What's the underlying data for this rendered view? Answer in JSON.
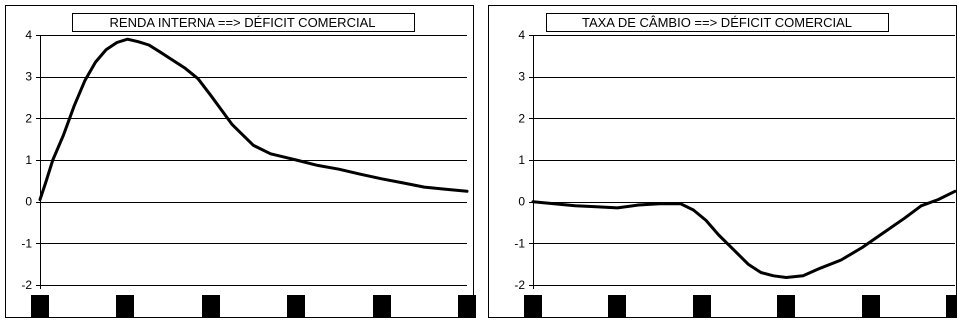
{
  "chart_data": [
    {
      "type": "line",
      "title": "RENDA INTERNA ==> DÉFICIT COMERCIAL",
      "xlabel": "",
      "ylabel": "",
      "ylim": [
        -2,
        4
      ],
      "yticks": [
        "4",
        "3",
        "2",
        "1",
        "0",
        "-1",
        "-2"
      ],
      "xlim": [
        0,
        10
      ],
      "grid": true,
      "legend": "none",
      "series": [
        {
          "x": [
            0,
            0.13,
            0.3,
            0.55,
            0.8,
            1.05,
            1.3,
            1.55,
            1.8,
            2.05,
            2.3,
            2.55,
            2.8,
            3.1,
            3.4,
            3.7,
            4.0,
            4.5,
            5.0,
            5.4,
            5.8,
            6.0,
            6.5,
            7.0,
            7.5,
            8.0,
            8.5,
            9.0,
            9.5,
            10.0
          ],
          "y": [
            0.05,
            0.45,
            1.0,
            1.6,
            2.3,
            2.9,
            3.35,
            3.65,
            3.82,
            3.9,
            3.84,
            3.76,
            3.6,
            3.4,
            3.2,
            2.95,
            2.55,
            1.85,
            1.35,
            1.15,
            1.05,
            1.0,
            0.87,
            0.78,
            0.66,
            0.55,
            0.45,
            0.35,
            0.3,
            0.25
          ]
        }
      ]
    },
    {
      "type": "line",
      "title": "TAXA DE CÂMBIO ==> DÉFICIT COMERCIAL",
      "xlabel": "",
      "ylabel": "",
      "ylim": [
        -2,
        4
      ],
      "yticks": [
        "4",
        "3",
        "2",
        "1",
        "0",
        "-1",
        "-2"
      ],
      "xlim": [
        0,
        10
      ],
      "grid": true,
      "legend": "none",
      "series": [
        {
          "x": [
            0,
            0.5,
            1.0,
            1.5,
            2.0,
            2.5,
            3.0,
            3.5,
            3.8,
            4.1,
            4.4,
            4.8,
            5.1,
            5.4,
            5.7,
            6.0,
            6.4,
            6.8,
            7.3,
            7.8,
            8.3,
            8.8,
            9.2,
            9.6,
            10.0
          ],
          "y": [
            0.0,
            -0.05,
            -0.1,
            -0.12,
            -0.15,
            -0.08,
            -0.05,
            -0.05,
            -0.2,
            -0.45,
            -0.8,
            -1.2,
            -1.5,
            -1.7,
            -1.78,
            -1.82,
            -1.78,
            -1.6,
            -1.4,
            -1.1,
            -0.75,
            -0.4,
            -0.1,
            0.05,
            0.25
          ]
        }
      ]
    }
  ]
}
